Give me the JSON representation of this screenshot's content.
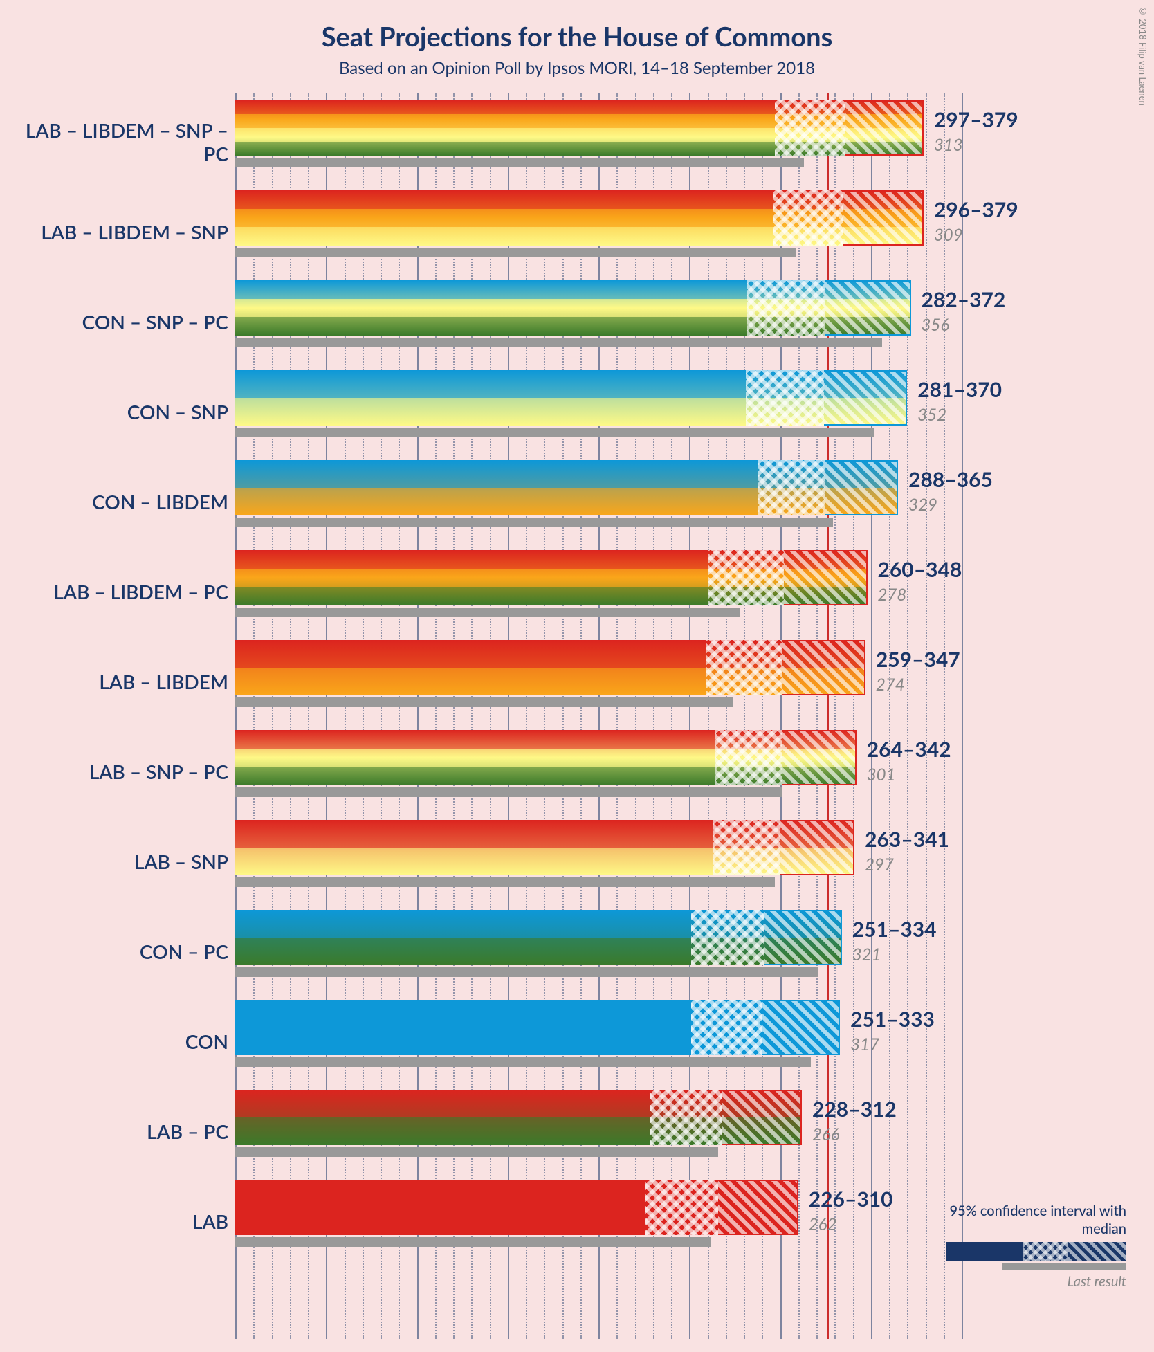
{
  "title": "Seat Projections for the House of Commons",
  "subtitle": "Based on an Opinion Poll by Ipsos MORI, 14–18 September 2018",
  "copyright": "© 2018 Filip van Laenen",
  "legend": {
    "ci_label": "95% confidence interval with median",
    "last_label": "Last result"
  },
  "colors": {
    "title": "#1a3668",
    "background": "#f9e2e2",
    "grid": "#1a3668",
    "majority": "#c00000",
    "last_result": "#999999",
    "LAB": "#dc241f",
    "CON": "#0d98d8",
    "LIBDEM": "#faa61a",
    "SNP": "#fef987",
    "PC": "#3b7a2a"
  },
  "axis": {
    "min": 0,
    "max": 400,
    "majorStep": 50,
    "minorStep": 10,
    "majority": 326
  },
  "rows": [
    {
      "label": "LAB – LIBDEM – SNP – PC",
      "parties": [
        "LAB",
        "LIBDEM",
        "SNP",
        "PC"
      ],
      "low": 297,
      "median": 336,
      "high": 379,
      "last": 313
    },
    {
      "label": "LAB – LIBDEM – SNP",
      "parties": [
        "LAB",
        "LIBDEM",
        "SNP"
      ],
      "low": 296,
      "median": 335,
      "high": 379,
      "last": 309
    },
    {
      "label": "CON – SNP – PC",
      "parties": [
        "CON",
        "SNP",
        "PC"
      ],
      "low": 282,
      "median": 325,
      "high": 372,
      "last": 356
    },
    {
      "label": "CON – SNP",
      "parties": [
        "CON",
        "SNP"
      ],
      "low": 281,
      "median": 324,
      "high": 370,
      "last": 352
    },
    {
      "label": "CON – LIBDEM",
      "parties": [
        "CON",
        "LIBDEM"
      ],
      "low": 288,
      "median": 325,
      "high": 365,
      "last": 329
    },
    {
      "label": "LAB – LIBDEM – PC",
      "parties": [
        "LAB",
        "LIBDEM",
        "PC"
      ],
      "low": 260,
      "median": 302,
      "high": 348,
      "last": 278
    },
    {
      "label": "LAB – LIBDEM",
      "parties": [
        "LAB",
        "LIBDEM"
      ],
      "low": 259,
      "median": 301,
      "high": 347,
      "last": 274
    },
    {
      "label": "LAB – SNP – PC",
      "parties": [
        "LAB",
        "SNP",
        "PC"
      ],
      "low": 264,
      "median": 301,
      "high": 342,
      "last": 301
    },
    {
      "label": "LAB – SNP",
      "parties": [
        "LAB",
        "SNP"
      ],
      "low": 263,
      "median": 300,
      "high": 341,
      "last": 297
    },
    {
      "label": "CON – PC",
      "parties": [
        "CON",
        "PC"
      ],
      "low": 251,
      "median": 291,
      "high": 334,
      "last": 321
    },
    {
      "label": "CON",
      "parties": [
        "CON"
      ],
      "low": 251,
      "median": 290,
      "high": 333,
      "last": 317
    },
    {
      "label": "LAB – PC",
      "parties": [
        "LAB",
        "PC"
      ],
      "low": 228,
      "median": 268,
      "high": 312,
      "last": 266
    },
    {
      "label": "LAB",
      "parties": [
        "LAB"
      ],
      "low": 226,
      "median": 266,
      "high": 310,
      "last": 262
    }
  ],
  "layout": {
    "chartWidthPx": 1050,
    "rowHeightPx": 130,
    "rowTopStart": 5,
    "label_fontsize": 28,
    "value_fontsize": 30,
    "last_fontsize": 24,
    "title_fontsize": 38,
    "subtitle_fontsize": 24
  }
}
